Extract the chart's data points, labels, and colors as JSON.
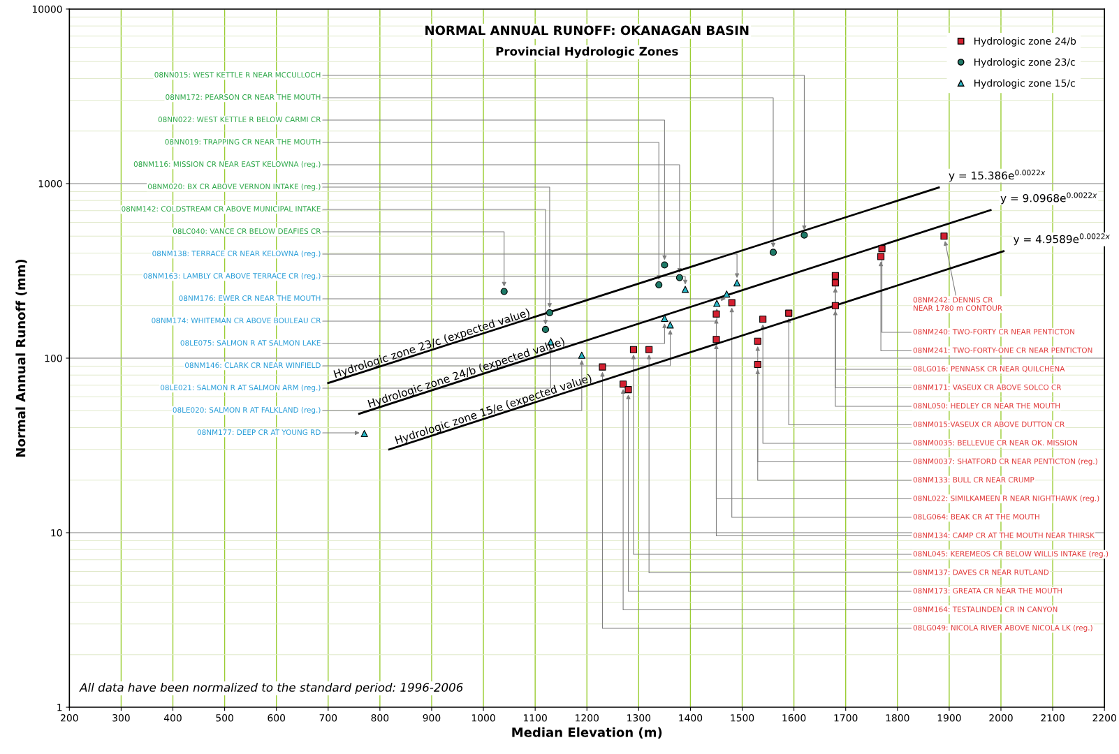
{
  "chart_data": {
    "type": "scatter",
    "title": "NORMAL ANNUAL RUNOFF: OKANAGAN BASIN",
    "subtitle": "Provincial Hydrologic Zones",
    "xlabel": "Median Elevation (m)",
    "ylabel": "Normal Annual Runoff (mm)",
    "xlim": [
      200,
      2200
    ],
    "xticks": [
      200,
      300,
      400,
      500,
      600,
      700,
      800,
      900,
      1000,
      1100,
      1200,
      1300,
      1400,
      1500,
      1600,
      1700,
      1800,
      1900,
      2000,
      2100,
      2200
    ],
    "ylim": [
      1,
      10000
    ],
    "yticks": [
      1,
      10,
      100,
      1000,
      10000
    ],
    "log": "y",
    "grid": true,
    "legend": "top right",
    "series": [
      {
        "name": "Hydrologic zone 24/b",
        "marker": "square",
        "color": "#d42030",
        "x": [
          1890,
          1770,
          1768,
          1680,
          1680,
          1680,
          1480,
          1450,
          1590,
          1540,
          1450,
          1530,
          1530,
          1290,
          1320,
          1230,
          1270,
          1280
        ],
        "values": [
          500,
          424,
          382,
          297,
          270,
          200,
          208,
          179,
          181,
          167,
          128,
          125,
          92,
          112,
          112,
          89,
          71,
          66
        ]
      },
      {
        "name": "Hydrologic zone 23/c",
        "marker": "circle",
        "color": "#1e7a68",
        "x": [
          1620,
          1560,
          1350,
          1379,
          1339,
          1040,
          1128,
          1120
        ],
        "values": [
          507,
          404,
          342,
          289,
          263,
          241,
          182,
          146
        ]
      },
      {
        "name": "Hydrologic zone 15/c",
        "marker": "triangle",
        "color": "#2ab8c8",
        "x": [
          1490,
          1390,
          1470,
          1451,
          1350,
          1361,
          1130,
          1190,
          770
        ],
        "values": [
          270,
          248,
          233,
          206,
          169,
          155,
          124,
          104,
          37
        ]
      },
      {
        "name": "Hydrologic zone 23/c (expected value)",
        "type": "line",
        "color": "#000000",
        "x": [
          700,
          1880
        ],
        "values": [
          72,
          950
        ]
      },
      {
        "name": "Hydrologic zone 24/b (expected value)",
        "type": "line",
        "color": "#000000",
        "x": [
          760,
          1980
        ],
        "values": [
          48,
          705
        ]
      },
      {
        "name": "Hydrologic zone 15/e (expected value)",
        "type": "line",
        "color": "#000000",
        "x": [
          818,
          2005
        ],
        "values": [
          30,
          410
        ]
      }
    ],
    "annotations": [
      {
        "text": "y = 15.386e$^{0.0022x}$",
        "x": 1880,
        "y": 950
      },
      {
        "text": "y = 9.0968e$^{0.0022x}$",
        "x": 1980,
        "y": 705
      },
      {
        "text": "y = 4.9589e$^{0.0022x}$",
        "x": 2005,
        "y": 410
      },
      {
        "text": "08NN015: WEST KETTLE R NEAR MCCULLOCH",
        "x": 1620,
        "y": 507
      },
      {
        "text": "08NM172: PEARSON CR NEAR THE MOUTH",
        "x": 1560,
        "y": 404
      },
      {
        "text": "08NN022: WEST KETTLE R BELOW CARMI CR",
        "x": 1350,
        "y": 342
      },
      {
        "text": "08NN019: TRAPPING CR NEAR THE MOUTH",
        "x": 1339,
        "y": 263
      },
      {
        "text": "08NM116: MISSION CR NEAR EAST KELOWNA (reg.)",
        "x": 1379,
        "y": 289
      },
      {
        "text": "08NM020: BX CR ABOVE VERNON INTAKE (reg.)",
        "x": 1128,
        "y": 182
      },
      {
        "text": "08NM142: COLDSTREAM CR ABOVE MUNICIPAL INTAKE",
        "x": 1120,
        "y": 146
      },
      {
        "text": "08LC040: VANCE CR BELOW DEAFIES CR",
        "x": 1040,
        "y": 241
      },
      {
        "text": "08NM138: TERRACE CR NEAR KELOWNA (reg.)",
        "x": 1490,
        "y": 270
      },
      {
        "text": "08NM163: LAMBLY CR ABOVE TERRACE CR (reg.)",
        "x": 1390,
        "y": 248
      },
      {
        "text": "08NM176: EWER CR NEAR THE MOUTH",
        "x": 1470,
        "y": 233
      },
      {
        "text": "08NM174: WHITEMAN CR ABOVE BOULEAU CR",
        "x": 1451,
        "y": 206
      },
      {
        "text": "08LE075: SALMON R AT SALMON LAKE",
        "x": 1350,
        "y": 169
      },
      {
        "text": "08NM146: CLARK CR NEAR WINFIELD",
        "x": 1361,
        "y": 155
      },
      {
        "text": "08LE021: SALMON R AT SALMON ARM (reg.)",
        "x": 1130,
        "y": 124
      },
      {
        "text": "08LE020: SALMON R AT FALKLAND (reg.)",
        "x": 1190,
        "y": 104
      },
      {
        "text": "08NM177: DEEP CR AT YOUNG RD",
        "x": 770,
        "y": 37
      },
      {
        "text": "08NM242: DENNIS CR\nNEAR 1780 m CONTOUR",
        "x": 1890,
        "y": 500
      },
      {
        "text": "08NM240: TWO-FORTY CR NEAR PENTICTON",
        "x": 1770,
        "y": 424
      },
      {
        "text": "08NM241: TWO-FORTY-ONE CR NEAR PENTICTON",
        "x": 1768,
        "y": 382
      },
      {
        "text": "08LG016: PENNASK CR NEAR QUILCHENA",
        "x": 1680,
        "y": 297
      },
      {
        "text": "08NM171: VASEUX CR ABOVE SOLCO CR",
        "x": 1680,
        "y": 270
      },
      {
        "text": "08NL050: HEDLEY CR NEAR THE MOUTH",
        "x": 1680,
        "y": 200
      },
      {
        "text": "08NM015:VASEUX CR ABOVE DUTTON CR",
        "x": 1590,
        "y": 181
      },
      {
        "text": "08NM0035: BELLEVUE CR NEAR OK. MISSION",
        "x": 1540,
        "y": 167
      },
      {
        "text": "08NM0037: SHATFORD CR NEAR PENTICTON (reg.)",
        "x": 1530,
        "y": 125
      },
      {
        "text": "08NM133: BULL CR NEAR CRUMP",
        "x": 1530,
        "y": 92
      },
      {
        "text": "08NL022: SIMILKAMEEN R NEAR NIGHTHAWK (reg.)",
        "x": 1450,
        "y": 179
      },
      {
        "text": "08LG064: BEAK CR AT THE MOUTH",
        "x": 1480,
        "y": 208
      },
      {
        "text": "08NM134: CAMP CR AT THE MOUTH NEAR THIRSK",
        "x": 1450,
        "y": 128
      },
      {
        "text": "08NL045: KEREMEOS CR BELOW WILLIS INTAKE (reg.)",
        "x": 1290,
        "y": 112
      },
      {
        "text": "08NM137: DAVES CR NEAR RUTLAND",
        "x": 1320,
        "y": 112
      },
      {
        "text": "08NM173: GREATA CR NEAR THE MOUTH",
        "x": 1280,
        "y": 66
      },
      {
        "text": "08NM164: TESTALINDEN CR IN CANYON",
        "x": 1270,
        "y": 71
      },
      {
        "text": "08LG049: NICOLA RIVER ABOVE NICOLA LK (reg.)",
        "x": 1230,
        "y": 89
      },
      "All data have been normalized to the standard period: 1996-2006"
    ]
  }
}
